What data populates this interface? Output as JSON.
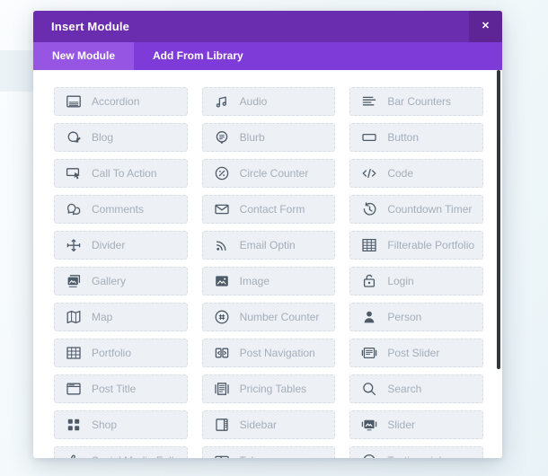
{
  "window": {
    "title": "Insert Module",
    "close_glyph": "✕"
  },
  "tabs": [
    {
      "label": "New Module",
      "active": true
    },
    {
      "label": "Add From Library",
      "active": false
    }
  ],
  "modules": [
    {
      "label": "Accordion",
      "icon": "accordion-icon"
    },
    {
      "label": "Audio",
      "icon": "audio-icon"
    },
    {
      "label": "Bar Counters",
      "icon": "bar-counters-icon"
    },
    {
      "label": "Blog",
      "icon": "blog-icon"
    },
    {
      "label": "Blurb",
      "icon": "blurb-icon"
    },
    {
      "label": "Button",
      "icon": "button-icon"
    },
    {
      "label": "Call To Action",
      "icon": "call-to-action-icon"
    },
    {
      "label": "Circle Counter",
      "icon": "circle-counter-icon"
    },
    {
      "label": "Code",
      "icon": "code-icon"
    },
    {
      "label": "Comments",
      "icon": "comments-icon"
    },
    {
      "label": "Contact Form",
      "icon": "contact-form-icon"
    },
    {
      "label": "Countdown Timer",
      "icon": "countdown-timer-icon"
    },
    {
      "label": "Divider",
      "icon": "divider-icon"
    },
    {
      "label": "Email Optin",
      "icon": "email-optin-icon"
    },
    {
      "label": "Filterable Portfolio",
      "icon": "filterable-portfolio-icon"
    },
    {
      "label": "Gallery",
      "icon": "gallery-icon"
    },
    {
      "label": "Image",
      "icon": "image-icon"
    },
    {
      "label": "Login",
      "icon": "login-icon"
    },
    {
      "label": "Map",
      "icon": "map-icon"
    },
    {
      "label": "Number Counter",
      "icon": "number-counter-icon"
    },
    {
      "label": "Person",
      "icon": "person-icon"
    },
    {
      "label": "Portfolio",
      "icon": "portfolio-icon"
    },
    {
      "label": "Post Navigation",
      "icon": "post-navigation-icon"
    },
    {
      "label": "Post Slider",
      "icon": "post-slider-icon"
    },
    {
      "label": "Post Title",
      "icon": "post-title-icon"
    },
    {
      "label": "Pricing Tables",
      "icon": "pricing-tables-icon"
    },
    {
      "label": "Search",
      "icon": "search-icon"
    },
    {
      "label": "Shop",
      "icon": "shop-icon"
    },
    {
      "label": "Sidebar",
      "icon": "sidebar-icon"
    },
    {
      "label": "Slider",
      "icon": "slider-icon"
    },
    {
      "label": "Social Media Follow",
      "icon": "social-media-follow-icon"
    },
    {
      "label": "Tabs",
      "icon": "tabs-icon"
    },
    {
      "label": "Testimonial",
      "icon": "testimonial-icon"
    }
  ],
  "colors": {
    "header_bg": "#6b2daf",
    "header_close_bg": "#5e2597",
    "tabbar_bg": "#7f3bd8",
    "tab_active_bg": "#9655e2",
    "body_bg": "#ffffff",
    "item_bg": "#edf0f4",
    "item_border": "#d6dde4",
    "item_text": "#a4aebb",
    "icon_color": "#4d5a68",
    "scrollbar": "#31373e"
  }
}
